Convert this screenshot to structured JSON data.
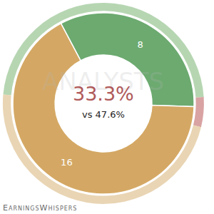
{
  "chart_data": [
    {
      "type": "pie",
      "values": [
        8,
        16
      ],
      "colors": [
        "#6caa70",
        "#d4a864"
      ],
      "data_labels": true,
      "annotations": [
        "33.3%",
        "vs 47.6%"
      ]
    },
    {
      "type": "pie",
      "values": [
        47.6,
        4.8,
        47.6
      ],
      "colors": [
        "#b6d6b2",
        "#d9a3a3",
        "#e9d5b4"
      ]
    }
  ],
  "watermark": "ANALYSTS",
  "source": "EarningsWhispers"
}
